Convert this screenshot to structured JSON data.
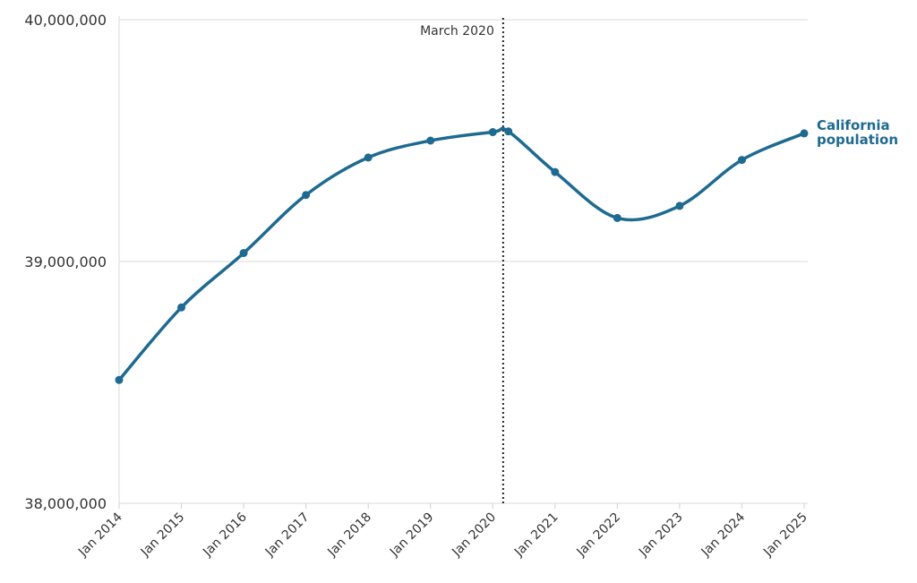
{
  "colors": {
    "series": "#1e6a90",
    "grid": "#e6e6e6",
    "axis": "#d0d0d0",
    "annotation": "#222222",
    "text": "#333333"
  },
  "chart_data": {
    "type": "line",
    "title": "",
    "xlabel": "",
    "ylabel": "",
    "ylim": [
      38000000,
      40000000
    ],
    "y_ticks": [
      38000000,
      39000000,
      40000000
    ],
    "y_tick_labels": [
      "38,000,000",
      "39,000,000",
      "40,000,000"
    ],
    "x_tick_labels": [
      "Jan 2014",
      "Jan 2015",
      "Jan 2016",
      "Jan 2017",
      "Jan 2018",
      "Jan 2019",
      "Jan 2020",
      "Jan 2021",
      "Jan 2022",
      "Jan 2023",
      "Jan 2024",
      "Jan 2025"
    ],
    "grid": "horizontal",
    "series": [
      {
        "name_lines": [
          "California",
          "population"
        ],
        "points": [
          {
            "x": "2014-01",
            "y": 38510000
          },
          {
            "x": "2015-01",
            "y": 38810000
          },
          {
            "x": "2016-01",
            "y": 39035000
          },
          {
            "x": "2017-01",
            "y": 39275000
          },
          {
            "x": "2018-01",
            "y": 39430000
          },
          {
            "x": "2019-01",
            "y": 39500000
          },
          {
            "x": "2020-01",
            "y": 39535000
          },
          {
            "x": "2020-04",
            "y": 39538000
          },
          {
            "x": "2021-01",
            "y": 39370000
          },
          {
            "x": "2022-01",
            "y": 39180000
          },
          {
            "x": "2023-01",
            "y": 39230000
          },
          {
            "x": "2024-01",
            "y": 39420000
          },
          {
            "x": "2025-01",
            "y": 39530000
          }
        ]
      }
    ],
    "annotations": [
      {
        "type": "vertical-line",
        "x": "2020-03",
        "label": "March 2020",
        "style": "dotted"
      }
    ]
  }
}
